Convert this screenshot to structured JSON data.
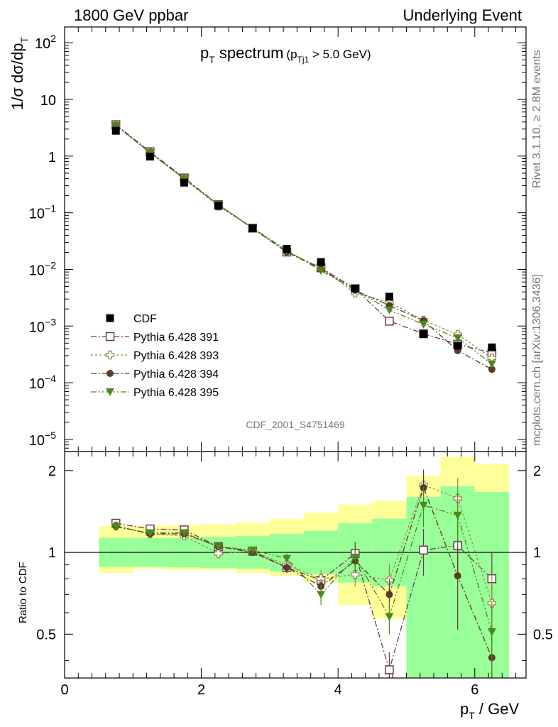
{
  "header": {
    "left": "1800 GeV ppbar",
    "right": "Underlying Event"
  },
  "side": {
    "rivet": "Rivet 3.1.10, ≥ 2.8M events",
    "mcplots": "mcplots.cern.ch [arXiv:1306.3436]"
  },
  "plot": {
    "title_main": "p",
    "title_main_sub": "T",
    "title_main_rest": " spectrum",
    "title_cut_open": "(p",
    "title_cut_sub": "Tj1",
    "title_cut_rest": " > 5.0 GeV)",
    "analysis_id": "CDF_2001_S4751469"
  },
  "axes": {
    "ylabel_main": "1/σ dσ/dp",
    "ylabel_main_sub": "T",
    "ylabel_ratio": "Ratio to CDF",
    "xlabel": "p",
    "xlabel_sub": "T",
    "xlabel_rest": " / GeV",
    "yticks_main": [
      {
        "base": "10",
        "exp": "2",
        "value": 100
      },
      {
        "base": "10",
        "exp": "",
        "value": 10
      },
      {
        "base": "1",
        "exp": "",
        "value": 1
      },
      {
        "base": "10",
        "exp": "−1",
        "value": 0.1
      },
      {
        "base": "10",
        "exp": "−2",
        "value": 0.01
      },
      {
        "base": "10",
        "exp": "−3",
        "value": 0.001
      },
      {
        "base": "10",
        "exp": "−4",
        "value": 0.0001
      },
      {
        "base": "10",
        "exp": "−5",
        "value": 1e-05
      }
    ],
    "xticks": [
      "0",
      "2",
      "4",
      "6"
    ],
    "yticks_ratio": [
      "0.5",
      "1",
      "2"
    ]
  },
  "chart_data": {
    "type": "scatter",
    "x_range": [
      0,
      6.75
    ],
    "y_log": true,
    "y_range": [
      6.1e-06,
      190
    ],
    "ratio_y_log": true,
    "ratio_range": [
      0.345,
      2.35
    ],
    "x": [
      0.75,
      1.25,
      1.75,
      2.25,
      2.75,
      3.25,
      3.75,
      4.25,
      4.75,
      5.25,
      5.75,
      6.25
    ],
    "x_edges": [
      0.5,
      1.0,
      1.5,
      2.0,
      2.5,
      3.0,
      3.5,
      4.0,
      4.5,
      5.0,
      5.5,
      6.0,
      6.5
    ],
    "data": {
      "name": "CDF",
      "color": "#000000",
      "values": [
        2.8,
        0.98,
        0.34,
        0.132,
        0.053,
        0.023,
        0.0135,
        0.0046,
        0.0033,
        0.00072,
        0.00045,
        0.00042
      ]
    },
    "bands": {
      "green_low": [
        0.885,
        0.885,
        0.88,
        0.875,
        0.87,
        0.85,
        0.83,
        0.775,
        0.75,
        0.33,
        0.33,
        0.33
      ],
      "green_high": [
        1.13,
        1.13,
        1.13,
        1.14,
        1.15,
        1.17,
        1.2,
        1.28,
        1.33,
        1.6,
        1.75,
        1.67
      ],
      "yellow_low": [
        0.84,
        0.87,
        0.86,
        0.86,
        0.84,
        0.82,
        0.78,
        0.64,
        0.57,
        0.33,
        0.33,
        0.33
      ],
      "yellow_high": [
        1.25,
        1.25,
        1.26,
        1.27,
        1.29,
        1.33,
        1.4,
        1.5,
        1.55,
        1.92,
        2.25,
        2.12
      ]
    },
    "series": [
      {
        "name": "Pythia 6.428 391",
        "color": "#6b3a52",
        "marker": "open-square",
        "ratio": [
          1.28,
          1.22,
          1.21,
          1.05,
          1.01,
          0.88,
          0.79,
          0.99,
          0.37,
          1.02,
          1.06,
          0.8
        ],
        "ratio_err": [
          0.03,
          0.03,
          0.03,
          0.03,
          0.03,
          0.04,
          0.06,
          0.1,
          0.06,
          0.2,
          0.25,
          0.2
        ]
      },
      {
        "name": "Pythia 6.428 393",
        "color": "#9a8a50",
        "marker": "open-cross",
        "ratio": [
          1.25,
          1.17,
          1.15,
          0.99,
          1.01,
          0.9,
          0.8,
          0.83,
          0.79,
          1.77,
          1.58,
          0.65
        ],
        "ratio_err": [
          0.03,
          0.03,
          0.03,
          0.03,
          0.03,
          0.04,
          0.06,
          0.08,
          0.12,
          0.25,
          0.3,
          0.18
        ]
      },
      {
        "name": "Pythia 6.428 394",
        "color": "#5c3a28",
        "marker": "filled-circle",
        "ratio": [
          1.25,
          1.17,
          1.17,
          1.05,
          1.0,
          0.88,
          0.75,
          0.93,
          0.7,
          1.73,
          0.82,
          0.41
        ],
        "ratio_err": [
          0.03,
          0.03,
          0.03,
          0.03,
          0.03,
          0.04,
          0.05,
          0.09,
          0.1,
          0.28,
          0.3,
          0.1
        ]
      },
      {
        "name": "Pythia 6.428 395",
        "color": "#4a8a1a",
        "marker": "filled-triangle-down",
        "ratio": [
          1.24,
          1.18,
          1.18,
          1.05,
          1.02,
          0.95,
          0.7,
          0.96,
          0.58,
          1.49,
          1.37,
          0.51
        ],
        "ratio_err": [
          0.03,
          0.03,
          0.03,
          0.03,
          0.03,
          0.04,
          0.06,
          0.1,
          0.08,
          0.25,
          0.3,
          0.15
        ]
      }
    ]
  }
}
